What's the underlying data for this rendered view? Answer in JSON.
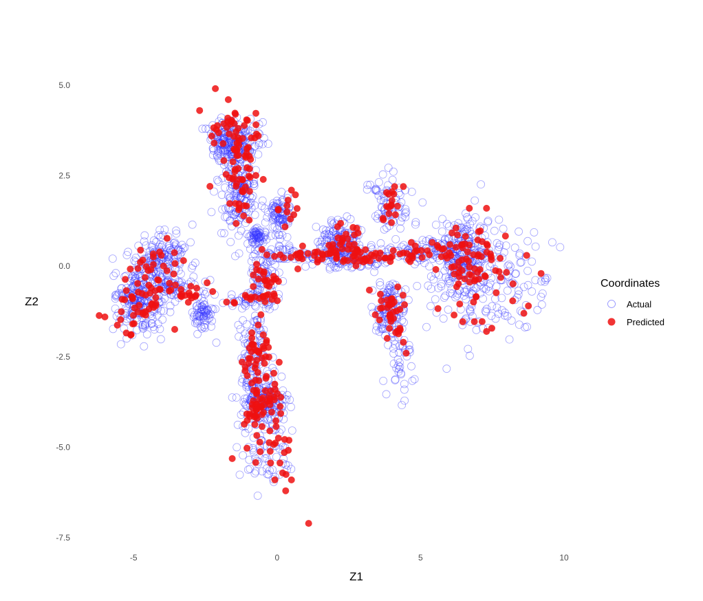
{
  "chart_data": {
    "type": "scatter",
    "title": "",
    "xlabel": "Z1",
    "ylabel": "Z2",
    "xlim": [
      -6.3,
      10.6
    ],
    "ylim": [
      -7.8,
      5.3
    ],
    "x_ticks": [
      -5,
      0,
      5,
      10
    ],
    "y_ticks": [
      5.0,
      2.5,
      0.0,
      -2.5,
      -5.0,
      -7.5
    ],
    "x_tick_labels": [
      "-5",
      "0",
      "5",
      "10"
    ],
    "y_tick_labels": [
      "5.0",
      "2.5",
      "0.0",
      "-2.5",
      "-5.0",
      "-7.5"
    ],
    "grid": false,
    "legend": {
      "title": "Coordinates",
      "position": "right",
      "entries": [
        {
          "label": "Actual",
          "color": "#3333ff",
          "style": "open-circle"
        },
        {
          "label": "Predicted",
          "color": "#ee1111",
          "style": "filled-circle"
        }
      ]
    },
    "series": [
      {
        "name": "Actual",
        "color": "#3333ff",
        "marker": "open-circle",
        "clusters": [
          {
            "cx": -1.6,
            "cy": 3.4,
            "sx": 0.45,
            "sy": 0.35,
            "n": 240,
            "anchor": [
              -1.6,
              4.4
            ]
          },
          {
            "cx": -1.3,
            "cy": 2.0,
            "sx": 0.3,
            "sy": 0.6,
            "n": 160
          },
          {
            "cx": 0.1,
            "cy": 1.4,
            "sx": 0.2,
            "sy": 0.25,
            "n": 90
          },
          {
            "cx": -0.7,
            "cy": 0.8,
            "sx": 0.18,
            "sy": 0.12,
            "n": 60
          },
          {
            "cx": -4.0,
            "cy": 0.3,
            "sx": 0.45,
            "sy": 0.35,
            "n": 150
          },
          {
            "cx": -4.8,
            "cy": -0.9,
            "sx": 0.4,
            "sy": 0.45,
            "n": 230
          },
          {
            "cx": -3.6,
            "cy": -0.6,
            "sx": 0.45,
            "sy": 0.12,
            "n": 60
          },
          {
            "cx": -2.6,
            "cy": -1.3,
            "sx": 0.18,
            "sy": 0.3,
            "n": 70
          },
          {
            "cx": -1.0,
            "cy": -0.9,
            "sx": 0.6,
            "sy": 0.1,
            "n": 40
          },
          {
            "cx": -0.5,
            "cy": -0.3,
            "sx": 0.25,
            "sy": 0.4,
            "n": 80
          },
          {
            "cx": -0.8,
            "cy": -2.4,
            "sx": 0.25,
            "sy": 0.6,
            "n": 120
          },
          {
            "cx": -0.5,
            "cy": -3.7,
            "sx": 0.4,
            "sy": 0.3,
            "n": 170
          },
          {
            "cx": -0.4,
            "cy": -5.0,
            "sx": 0.5,
            "sy": 0.6,
            "n": 70
          },
          {
            "cx": 0.8,
            "cy": 0.3,
            "sx": 0.6,
            "sy": 0.12,
            "n": 70
          },
          {
            "cx": 2.2,
            "cy": 0.7,
            "sx": 0.35,
            "sy": 0.3,
            "n": 150
          },
          {
            "cx": 2.8,
            "cy": 0.2,
            "sx": 0.6,
            "sy": 0.15,
            "n": 80
          },
          {
            "cx": 3.9,
            "cy": 1.7,
            "sx": 0.3,
            "sy": 0.45,
            "n": 80
          },
          {
            "cx": 3.9,
            "cy": -1.2,
            "sx": 0.25,
            "sy": 0.4,
            "n": 120
          },
          {
            "cx": 4.3,
            "cy": -2.6,
            "sx": 0.3,
            "sy": 0.6,
            "n": 40
          },
          {
            "cx": 4.8,
            "cy": 0.4,
            "sx": 0.8,
            "sy": 0.15,
            "n": 90
          },
          {
            "cx": 6.5,
            "cy": 0.2,
            "sx": 0.45,
            "sy": 0.5,
            "n": 230
          },
          {
            "cx": 7.5,
            "cy": -0.4,
            "sx": 1.1,
            "sy": 0.8,
            "n": 170
          }
        ]
      },
      {
        "name": "Predicted",
        "color": "#ee1111",
        "marker": "filled-circle",
        "clusters": [
          {
            "cx": -1.5,
            "cy": 3.6,
            "sx": 0.5,
            "sy": 0.4,
            "n": 45
          },
          {
            "cx": -1.3,
            "cy": 2.2,
            "sx": 0.3,
            "sy": 0.6,
            "n": 40
          },
          {
            "cx": 0.3,
            "cy": 1.6,
            "sx": 0.3,
            "sy": 0.3,
            "n": 10
          },
          {
            "cx": -4.2,
            "cy": 0.3,
            "sx": 0.35,
            "sy": 0.3,
            "n": 18
          },
          {
            "cx": -4.8,
            "cy": -1.0,
            "sx": 0.45,
            "sy": 0.45,
            "n": 45
          },
          {
            "cx": -3.3,
            "cy": -0.7,
            "sx": 0.6,
            "sy": 0.15,
            "n": 20
          },
          {
            "cx": -0.9,
            "cy": -0.9,
            "sx": 0.5,
            "sy": 0.1,
            "n": 10
          },
          {
            "cx": -0.4,
            "cy": -0.4,
            "sx": 0.3,
            "sy": 0.4,
            "n": 30
          },
          {
            "cx": -0.7,
            "cy": -2.5,
            "sx": 0.3,
            "sy": 0.6,
            "n": 45
          },
          {
            "cx": -0.5,
            "cy": -3.9,
            "sx": 0.35,
            "sy": 0.3,
            "n": 45
          },
          {
            "cx": -0.1,
            "cy": -5.0,
            "sx": 0.5,
            "sy": 0.6,
            "n": 24
          },
          {
            "cx": 1.0,
            "cy": 0.3,
            "sx": 0.6,
            "sy": 0.1,
            "n": 22
          },
          {
            "cx": 2.3,
            "cy": 0.6,
            "sx": 0.4,
            "sy": 0.3,
            "n": 35
          },
          {
            "cx": 3.0,
            "cy": 0.2,
            "sx": 0.5,
            "sy": 0.12,
            "n": 22
          },
          {
            "cx": 4.0,
            "cy": 1.8,
            "sx": 0.3,
            "sy": 0.4,
            "n": 16
          },
          {
            "cx": 3.9,
            "cy": -1.4,
            "sx": 0.25,
            "sy": 0.5,
            "n": 35
          },
          {
            "cx": 5.0,
            "cy": 0.4,
            "sx": 0.8,
            "sy": 0.15,
            "n": 30
          },
          {
            "cx": 6.6,
            "cy": 0.1,
            "sx": 0.5,
            "sy": 0.55,
            "n": 45
          },
          {
            "cx": 7.6,
            "cy": -0.3,
            "sx": 0.8,
            "sy": 0.7,
            "n": 28
          }
        ],
        "points": [
          [
            -2.7,
            4.3
          ],
          [
            -1.7,
            4.6
          ],
          [
            -6.0,
            -1.4
          ],
          [
            1.1,
            -7.1
          ],
          [
            0.5,
            -5.9
          ],
          [
            0.3,
            -6.2
          ],
          [
            9.2,
            -0.2
          ],
          [
            8.6,
            -1.3
          ],
          [
            8.7,
            0.3
          ],
          [
            7.3,
            -1.8
          ],
          [
            4.4,
            -2.1
          ],
          [
            4.5,
            -2.4
          ],
          [
            0.5,
            2.1
          ],
          [
            -5.1,
            -1.9
          ],
          [
            4.4,
            2.2
          ],
          [
            7.3,
            1.6
          ],
          [
            6.7,
            1.6
          ]
        ]
      }
    ]
  }
}
